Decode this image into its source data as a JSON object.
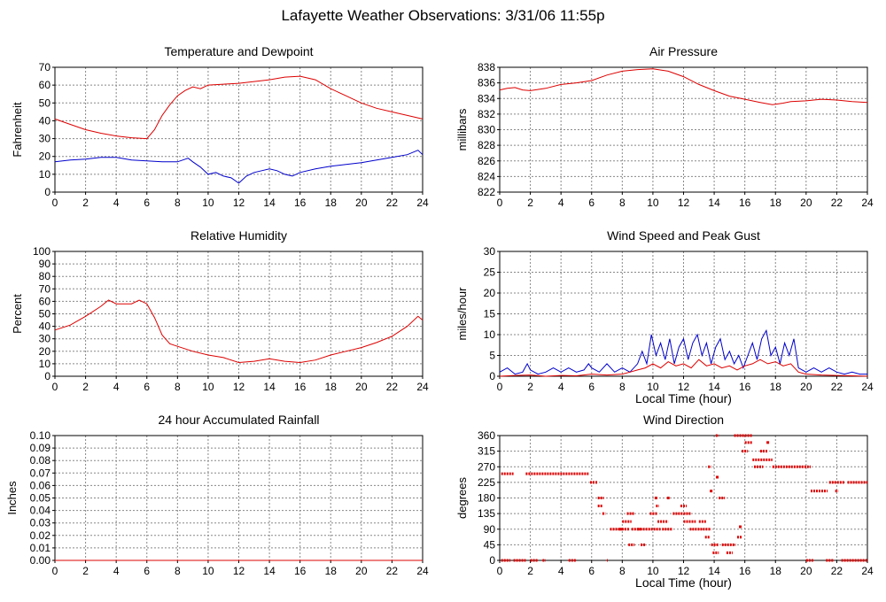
{
  "page": {
    "title": "Lafayette Weather Observations: 3/31/06 11:55p"
  },
  "colors": {
    "red": "#dd0000",
    "blue": "#0000cc",
    "grid": "#888888",
    "axis": "#000000"
  },
  "chart_data": [
    {
      "id": "temp",
      "type": "line",
      "title": "Temperature and Dewpoint",
      "xlabel": "",
      "ylabel": "Fahrenheit",
      "xlim": [
        0,
        24
      ],
      "ylim": [
        0,
        70
      ],
      "xticks": [
        0,
        2,
        4,
        6,
        8,
        10,
        12,
        14,
        16,
        18,
        20,
        22,
        24
      ],
      "yticks": [
        0,
        10,
        20,
        30,
        40,
        50,
        60,
        70
      ],
      "grid": true,
      "series": [
        {
          "color": "#dd0000",
          "x": [
            0,
            1,
            2,
            3,
            4,
            5,
            6,
            6.5,
            7,
            7.5,
            8,
            8.5,
            9,
            9.5,
            10,
            11,
            12,
            13,
            14,
            15,
            16,
            17,
            18,
            19,
            20,
            21,
            22,
            23,
            24
          ],
          "y": [
            41,
            38,
            35,
            33,
            31.5,
            30.5,
            30,
            35,
            43,
            49,
            54,
            57,
            59,
            58,
            60,
            60.5,
            61,
            62,
            63,
            64.5,
            65,
            63,
            58,
            54,
            50,
            47,
            45,
            43,
            41
          ]
        },
        {
          "color": "#0000cc",
          "x": [
            0,
            1,
            2,
            3,
            4,
            5,
            6,
            7,
            8,
            8.7,
            9,
            9.5,
            10,
            10.5,
            11,
            11.5,
            12,
            12.5,
            13,
            13.5,
            14,
            14.5,
            15,
            15.5,
            16,
            17,
            18,
            19,
            20,
            21,
            22,
            23,
            23.7,
            24
          ],
          "y": [
            17,
            18,
            18.5,
            19.5,
            19.5,
            18,
            17.5,
            17,
            17,
            19,
            17,
            14,
            10,
            11,
            9,
            8,
            5,
            9,
            11,
            12,
            13,
            12,
            10,
            9,
            11,
            13,
            14.5,
            15.5,
            16.5,
            18,
            19.5,
            21,
            23.5,
            21
          ]
        }
      ]
    },
    {
      "id": "pressure",
      "type": "line",
      "title": "Air Pressure",
      "xlabel": "",
      "ylabel": "millibars",
      "xlim": [
        0,
        24
      ],
      "ylim": [
        822,
        838
      ],
      "xticks": [
        0,
        2,
        4,
        6,
        8,
        10,
        12,
        14,
        16,
        18,
        20,
        22,
        24
      ],
      "yticks": [
        822,
        824,
        826,
        828,
        830,
        832,
        834,
        836,
        838
      ],
      "grid": true,
      "series": [
        {
          "color": "#dd0000",
          "x": [
            0,
            0.5,
            1,
            1.5,
            2,
            3,
            4,
            5,
            6,
            7,
            8,
            9,
            10,
            11,
            12,
            13,
            14,
            15,
            16,
            17,
            17.8,
            18.5,
            19,
            20,
            21,
            22,
            23,
            24
          ],
          "y": [
            835.1,
            835.3,
            835.4,
            835.1,
            835,
            835.3,
            835.8,
            836,
            836.3,
            837,
            837.5,
            837.7,
            837.8,
            837.5,
            836.8,
            835.8,
            835,
            834.3,
            833.9,
            833.5,
            833.2,
            833.4,
            833.6,
            833.7,
            833.9,
            833.8,
            833.6,
            833.5
          ]
        }
      ]
    },
    {
      "id": "humidity",
      "type": "line",
      "title": "Relative Humidity",
      "xlabel": "",
      "ylabel": "Percent",
      "xlim": [
        0,
        24
      ],
      "ylim": [
        0,
        100
      ],
      "xticks": [
        0,
        2,
        4,
        6,
        8,
        10,
        12,
        14,
        16,
        18,
        20,
        22,
        24
      ],
      "yticks": [
        0,
        10,
        20,
        30,
        40,
        50,
        60,
        70,
        80,
        90,
        100
      ],
      "grid": true,
      "series": [
        {
          "color": "#dd0000",
          "x": [
            0,
            1,
            2,
            3,
            3.5,
            4,
            5,
            5.5,
            6,
            6.5,
            7,
            7.5,
            8,
            9,
            10,
            11,
            12,
            13,
            14,
            15,
            16,
            17,
            18,
            19,
            20,
            21,
            22,
            23,
            23.7,
            24
          ],
          "y": [
            37,
            41,
            48,
            56,
            61,
            58,
            58,
            61,
            58,
            47,
            33,
            26,
            24,
            20,
            17,
            15,
            11,
            12,
            14,
            12,
            11,
            13,
            17,
            20,
            23,
            27,
            32,
            40,
            48,
            45
          ]
        }
      ]
    },
    {
      "id": "wind",
      "type": "line",
      "title": "Wind Speed and Peak Gust",
      "xlabel": "Local Time (hour)",
      "ylabel": "miles/hour",
      "xlim": [
        0,
        24
      ],
      "ylim": [
        0,
        30
      ],
      "xticks": [
        0,
        2,
        4,
        6,
        8,
        10,
        12,
        14,
        16,
        18,
        20,
        22,
        24
      ],
      "yticks": [
        0,
        5,
        10,
        15,
        20,
        25,
        30
      ],
      "grid": true,
      "series": [
        {
          "color": "#0000cc",
          "x": [
            0,
            0.5,
            1,
            1.5,
            1.8,
            2,
            2.5,
            3,
            3.5,
            4,
            4.5,
            5,
            5.5,
            5.8,
            6,
            6.5,
            7,
            7.5,
            8,
            8.5,
            9,
            9.3,
            9.6,
            9.9,
            10.2,
            10.5,
            10.8,
            11.1,
            11.4,
            11.7,
            12,
            12.3,
            12.6,
            12.9,
            13.2,
            13.5,
            13.8,
            14.1,
            14.4,
            14.7,
            15,
            15.3,
            15.6,
            15.9,
            16.2,
            16.5,
            16.8,
            17.1,
            17.4,
            17.7,
            18,
            18.3,
            18.6,
            18.9,
            19.2,
            19.5,
            20,
            20.5,
            21,
            21.5,
            22,
            22.5,
            23,
            23.5,
            24
          ],
          "y": [
            1,
            2,
            0.5,
            1,
            3,
            1.5,
            0.5,
            1,
            2,
            1,
            2,
            1,
            1.5,
            3,
            2,
            1,
            3,
            1,
            2,
            1,
            3,
            6,
            3,
            10,
            5,
            8,
            4,
            9,
            3,
            7,
            9,
            4,
            8,
            10,
            5,
            8,
            3,
            7,
            9,
            4,
            6,
            3,
            5,
            2,
            5,
            8,
            4,
            9,
            11,
            5,
            7,
            3,
            8,
            5,
            9,
            2,
            1,
            2,
            1,
            2,
            1,
            0.5,
            1,
            0.5,
            0.5
          ]
        },
        {
          "color": "#dd0000",
          "x": [
            0,
            1,
            2,
            3,
            4,
            5,
            6,
            7,
            8,
            8.5,
            9,
            9.5,
            10,
            10.5,
            11,
            11.5,
            12,
            12.5,
            13,
            13.5,
            14,
            14.5,
            15,
            15.5,
            16,
            16.5,
            17,
            17.5,
            18,
            18.5,
            19,
            19.5,
            20,
            21,
            22,
            23,
            24
          ],
          "y": [
            0,
            0.2,
            0.3,
            0,
            0.2,
            0.1,
            0.5,
            0.3,
            0.5,
            1,
            1.5,
            2,
            3,
            2,
            3.5,
            2.5,
            3,
            2,
            4,
            2.5,
            3,
            2,
            2.5,
            1.5,
            2.5,
            3,
            4,
            3,
            3.5,
            2.5,
            3,
            1,
            0.5,
            0.3,
            0.2,
            0.1,
            0
          ]
        }
      ]
    },
    {
      "id": "rain",
      "type": "line",
      "title": "24 hour Accumulated Rainfall",
      "xlabel": "",
      "ylabel": "Inches",
      "xlim": [
        0,
        24
      ],
      "ylim": [
        0,
        0.1
      ],
      "xticks": [
        0,
        2,
        4,
        6,
        8,
        10,
        12,
        14,
        16,
        18,
        20,
        22,
        24
      ],
      "yticks": [
        "0.00",
        "0.01",
        "0.02",
        "0.03",
        "0.04",
        "0.05",
        "0.06",
        "0.07",
        "0.08",
        "0.09",
        "0.10"
      ],
      "grid": true,
      "series": [
        {
          "color": "#dd0000",
          "x": [
            0,
            24
          ],
          "y": [
            0,
            0
          ]
        }
      ]
    },
    {
      "id": "direction",
      "type": "scatter",
      "title": "Wind Direction",
      "xlabel": "Local Time (hour)",
      "ylabel": "degrees",
      "xlim": [
        0,
        24
      ],
      "ylim": [
        0,
        360
      ],
      "xticks": [
        0,
        2,
        4,
        6,
        8,
        10,
        12,
        14,
        16,
        18,
        20,
        22,
        24
      ],
      "yticks": [
        0,
        45,
        90,
        135,
        180,
        225,
        270,
        315,
        360
      ],
      "grid": true,
      "series": [
        {
          "color": "#dd0000",
          "segments": [
            [
              0.1,
              0.7,
              0
            ],
            [
              0.9,
              1.7,
              0
            ],
            [
              2.0,
              2.5,
              0
            ],
            [
              2.8,
              3.0,
              0
            ],
            [
              4.5,
              5.0,
              0
            ],
            [
              7.0,
              7.05,
              0
            ],
            [
              0.1,
              0.9,
              250
            ],
            [
              1.7,
              5.8,
              250
            ],
            [
              5.9,
              6.4,
              225
            ],
            [
              6.4,
              6.8,
              180
            ],
            [
              6.4,
              6.7,
              157
            ],
            [
              6.7,
              6.9,
              135
            ],
            [
              7.2,
              8.0,
              90
            ],
            [
              8.0,
              8.6,
              112
            ],
            [
              8.3,
              8.8,
              135
            ],
            [
              7.8,
              8.5,
              90
            ],
            [
              8.6,
              9.2,
              90
            ],
            [
              8.4,
              8.8,
              45
            ],
            [
              9.2,
              9.5,
              45
            ],
            [
              9.0,
              10.5,
              90
            ],
            [
              9.8,
              10.3,
              135
            ],
            [
              10.3,
              11.0,
              112
            ],
            [
              10.6,
              11.3,
              90
            ],
            [
              10.2,
              10.4,
              157
            ],
            [
              11.3,
              12.5,
              135
            ],
            [
              11.8,
              12.2,
              157
            ],
            [
              12.4,
              13.8,
              90
            ],
            [
              12.0,
              12.8,
              112
            ],
            [
              13.0,
              13.5,
              112
            ],
            [
              13.4,
              13.7,
              67
            ],
            [
              13.6,
              13.8,
              270
            ],
            [
              13.8,
              14.3,
              45
            ],
            [
              13.9,
              14.3,
              22
            ],
            [
              14.3,
              14.7,
              180
            ],
            [
              14.1,
              14.3,
              360
            ],
            [
              14.5,
              15.4,
              45
            ],
            [
              14.8,
              15.2,
              22
            ],
            [
              15.5,
              15.8,
              67
            ],
            [
              15.3,
              16.5,
              360
            ],
            [
              15.8,
              16.2,
              315
            ],
            [
              16.0,
              16.5,
              340
            ],
            [
              16.5,
              17.8,
              290
            ],
            [
              16.6,
              17.2,
              270
            ],
            [
              17.0,
              17.5,
              315
            ],
            [
              17.8,
              20.3,
              270
            ],
            [
              20.0,
              20.5,
              0
            ],
            [
              20.3,
              21.4,
              200
            ],
            [
              21.5,
              22.5,
              225
            ],
            [
              21.3,
              21.8,
              0
            ],
            [
              21.9,
              22.1,
              200
            ],
            [
              22.7,
              24.0,
              225
            ],
            [
              22.3,
              24.0,
              0
            ]
          ],
          "points": [
            [
              13.8,
              200
            ],
            [
              14.2,
              240
            ],
            [
              15.7,
              97
            ],
            [
              17.5,
              340
            ],
            [
              10.2,
              180
            ],
            [
              11.0,
              180
            ]
          ]
        }
      ]
    }
  ]
}
